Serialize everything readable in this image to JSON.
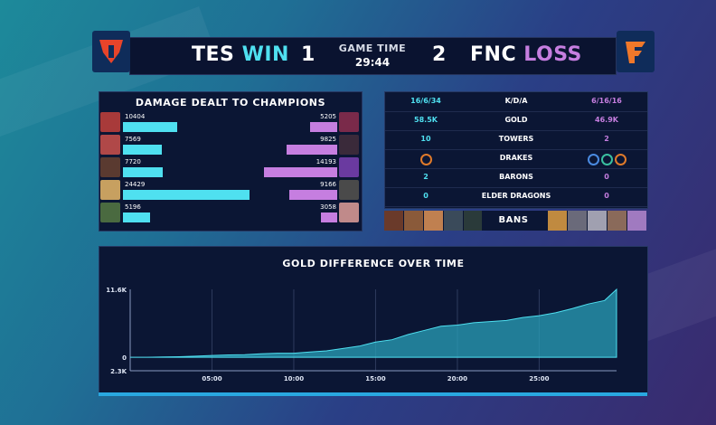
{
  "scoreboard": {
    "blue_team": "TES",
    "blue_result": "WIN",
    "blue_score": "1",
    "red_team": "FNC",
    "red_result": "LOSS",
    "red_score": "2",
    "game_time_label": "GAME TIME",
    "game_time": "29:44"
  },
  "damage": {
    "title": "DAMAGE DEALT TO CHAMPIONS",
    "max": 24429,
    "blue": [
      {
        "value": "10404",
        "color": "#a83a3a"
      },
      {
        "value": "7569",
        "color": "#b04848"
      },
      {
        "value": "7720",
        "color": "#5a3a30"
      },
      {
        "value": "24429",
        "color": "#c7a060"
      },
      {
        "value": "5196",
        "color": "#4a6a40"
      }
    ],
    "red": [
      {
        "value": "5205",
        "color": "#7a2a4a"
      },
      {
        "value": "9825",
        "color": "#3a2a3a"
      },
      {
        "value": "14193",
        "color": "#6a3aa0"
      },
      {
        "value": "9166",
        "color": "#4a4a4a"
      },
      {
        "value": "3058",
        "color": "#c08a8a"
      }
    ]
  },
  "stats": {
    "rows": [
      {
        "label": "K/D/A",
        "blue": "16/6/34",
        "red": "6/16/16"
      },
      {
        "label": "GOLD",
        "blue": "58.5K",
        "red": "46.9K"
      },
      {
        "label": "TOWERS",
        "blue": "10",
        "red": "2"
      },
      {
        "label": "DRAKES",
        "blue": "",
        "red": ""
      },
      {
        "label": "BARONS",
        "blue": "2",
        "red": "0"
      },
      {
        "label": "ELDER DRAGONS",
        "blue": "0",
        "red": "0"
      }
    ],
    "blue_drakes": [
      "#e07a2a"
    ],
    "red_drakes": [
      "#4a8ae0",
      "#3ac0a0",
      "#e07a2a"
    ]
  },
  "bans": {
    "label": "BANS",
    "blue": [
      "#6a3a2a",
      "#8a5a3a",
      "#c08050",
      "#3a4a5a",
      "#2a3a3a"
    ],
    "red": [
      "#c08a40",
      "#6a6a7a",
      "#a0a0b0",
      "#8a6a5a",
      "#a07ac0"
    ]
  },
  "gold_chart": {
    "title": "GOLD DIFFERENCE OVER TIME",
    "accent": "#2aa0b8",
    "chart_data": {
      "type": "area",
      "title": "GOLD DIFFERENCE OVER TIME",
      "x_ticks": [
        "05:00",
        "10:00",
        "15:00",
        "20:00",
        "25:00"
      ],
      "y_ticks": [
        "11.6K",
        "0",
        "2.3K"
      ],
      "xlim": [
        0,
        29.73
      ],
      "ylim": [
        -2300,
        11600
      ],
      "x": [
        0,
        1,
        2,
        3,
        4,
        5,
        6,
        7,
        8,
        9,
        10,
        11,
        12,
        13,
        14,
        15,
        16,
        17,
        18,
        19,
        20,
        21,
        22,
        23,
        24,
        25,
        26,
        27,
        28,
        29,
        29.73
      ],
      "values": [
        0,
        0,
        50,
        100,
        200,
        300,
        400,
        450,
        600,
        700,
        700,
        900,
        1100,
        1500,
        1900,
        2600,
        3000,
        3900,
        4600,
        5300,
        5500,
        5900,
        6100,
        6300,
        6800,
        7100,
        7600,
        8300,
        9100,
        9700,
        11600
      ]
    }
  }
}
